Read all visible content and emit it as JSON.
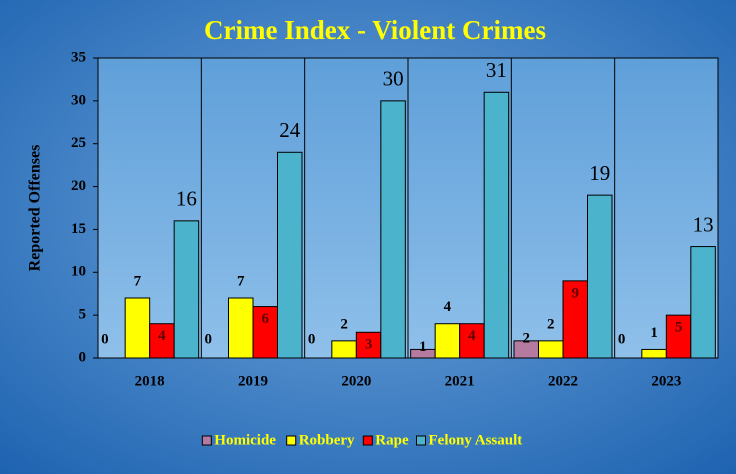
{
  "chart_data": {
    "type": "bar",
    "title": "Crime Index - Violent Crimes",
    "y_label": "Reported Offenses",
    "categories": [
      "2018",
      "2019",
      "2020",
      "2021",
      "2022",
      "2023"
    ],
    "series": [
      {
        "name": "Homicide",
        "color": "#b57aa0",
        "values": [
          0,
          0,
          0,
          1,
          2,
          0
        ]
      },
      {
        "name": "Robbery",
        "color": "#ffff00",
        "values": [
          7,
          7,
          2,
          4,
          2,
          1
        ]
      },
      {
        "name": "Rape",
        "color": "#ff0000",
        "values": [
          4,
          6,
          3,
          4,
          9,
          5
        ]
      },
      {
        "name": "Felony Assault",
        "color": "#4bb3cc",
        "values": [
          16,
          24,
          30,
          31,
          19,
          13
        ]
      }
    ],
    "ylim": [
      0,
      35
    ],
    "yticks": [
      0,
      5,
      10,
      15,
      20,
      25,
      30,
      35
    ],
    "legend": "bottom"
  }
}
